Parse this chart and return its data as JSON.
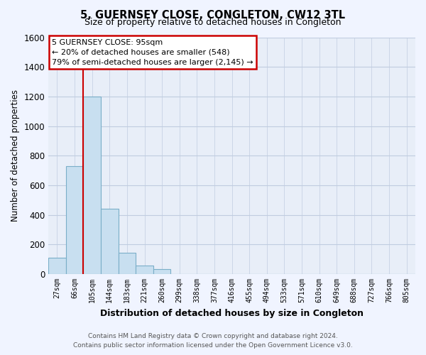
{
  "title": "5, GUERNSEY CLOSE, CONGLETON, CW12 3TL",
  "subtitle": "Size of property relative to detached houses in Congleton",
  "xlabel": "Distribution of detached houses by size in Congleton",
  "ylabel": "Number of detached properties",
  "bar_labels": [
    "27sqm",
    "66sqm",
    "105sqm",
    "144sqm",
    "183sqm",
    "221sqm",
    "260sqm",
    "299sqm",
    "338sqm",
    "377sqm",
    "416sqm",
    "455sqm",
    "494sqm",
    "533sqm",
    "571sqm",
    "610sqm",
    "649sqm",
    "688sqm",
    "727sqm",
    "766sqm",
    "805sqm"
  ],
  "bar_values": [
    110,
    730,
    1200,
    440,
    145,
    60,
    35,
    0,
    0,
    0,
    0,
    0,
    0,
    0,
    0,
    0,
    0,
    0,
    0,
    0,
    0
  ],
  "bar_color": "#c8dff0",
  "bar_edge_color": "#7aaec8",
  "ylim": [
    0,
    1600
  ],
  "yticks": [
    0,
    200,
    400,
    600,
    800,
    1000,
    1200,
    1400,
    1600
  ],
  "vline_color": "#cc0000",
  "annotation_title": "5 GUERNSEY CLOSE: 95sqm",
  "annotation_line1": "← 20% of detached houses are smaller (548)",
  "annotation_line2": "79% of semi-detached houses are larger (2,145) →",
  "footer_line1": "Contains HM Land Registry data © Crown copyright and database right 2024.",
  "footer_line2": "Contains public sector information licensed under the Open Government Licence v3.0.",
  "background_color": "#f0f4ff",
  "plot_bg_color": "#e8eef8",
  "grid_color": "#c0cce0"
}
